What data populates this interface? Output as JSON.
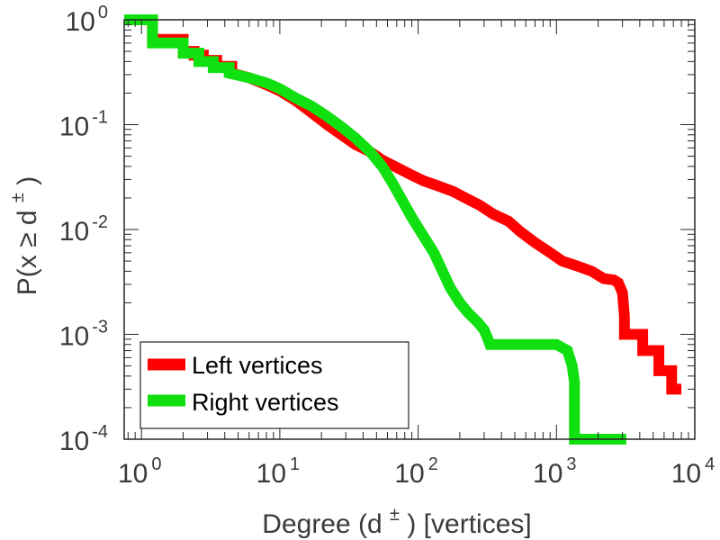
{
  "chart_data": {
    "type": "line",
    "xscale": "log",
    "yscale": "log",
    "xlim": [
      0.75,
      10000
    ],
    "ylim": [
      0.0001,
      1
    ],
    "xlabel": {
      "prefix": "Degree (d",
      "sup": "±",
      "suffix": ") [vertices]"
    },
    "ylabel": {
      "prefix": "P(x ≥ d",
      "sup": "±",
      "suffix": ")"
    },
    "xticks": [
      {
        "value": 1,
        "base": "10",
        "exp": "0"
      },
      {
        "value": 10,
        "base": "10",
        "exp": "1"
      },
      {
        "value": 100,
        "base": "10",
        "exp": "2"
      },
      {
        "value": 1000,
        "base": "10",
        "exp": "3"
      },
      {
        "value": 10000,
        "base": "10",
        "exp": "4"
      }
    ],
    "yticks": [
      {
        "value": 1,
        "base": "10",
        "exp": "0"
      },
      {
        "value": 0.1,
        "base": "10",
        "exp": "-1"
      },
      {
        "value": 0.01,
        "base": "10",
        "exp": "-2"
      },
      {
        "value": 0.001,
        "base": "10",
        "exp": "-3"
      },
      {
        "value": 0.0001,
        "base": "10",
        "exp": "-4"
      }
    ],
    "grid": false,
    "legend_position": "bottom-left",
    "series": [
      {
        "name": "Left vertices",
        "color": "#ff0000",
        "x": [
          0.75,
          1.2,
          1.2,
          2,
          2,
          2.4,
          2.4,
          2.8,
          2.8,
          3.5,
          3.5,
          4.5,
          4.5,
          6,
          8,
          10,
          13,
          17,
          22,
          28,
          35,
          45,
          55,
          70,
          90,
          110,
          140,
          180,
          220,
          280,
          350,
          450,
          550,
          700,
          900,
          1100,
          1400,
          1800,
          2200,
          2600,
          2800,
          3000,
          3100,
          3100,
          4200,
          4200,
          5500,
          5500,
          6800,
          6800,
          8000
        ],
        "y": [
          1,
          1,
          0.65,
          0.65,
          0.5,
          0.5,
          0.46,
          0.46,
          0.41,
          0.41,
          0.36,
          0.36,
          0.31,
          0.28,
          0.24,
          0.21,
          0.17,
          0.13,
          0.1,
          0.08,
          0.065,
          0.055,
          0.046,
          0.039,
          0.033,
          0.029,
          0.026,
          0.023,
          0.02,
          0.017,
          0.014,
          0.012,
          0.0095,
          0.0075,
          0.006,
          0.005,
          0.0045,
          0.004,
          0.0034,
          0.0033,
          0.0031,
          0.0025,
          0.0015,
          0.001,
          0.001,
          0.0007,
          0.0007,
          0.00045,
          0.00045,
          0.0003,
          0.0003
        ]
      },
      {
        "name": "Right vertices",
        "color": "#10e010",
        "x": [
          0.75,
          1.2,
          1.2,
          2,
          2,
          2.6,
          2.6,
          3.3,
          3.3,
          4.3,
          4.3,
          6,
          8,
          10,
          13,
          17,
          22,
          28,
          35,
          45,
          55,
          65,
          75,
          90,
          110,
          130,
          150,
          170,
          200,
          230,
          270,
          300,
          320,
          330,
          600,
          1000,
          1200,
          1300,
          1350,
          1350,
          3200
        ],
        "y": [
          1,
          1,
          0.6,
          0.6,
          0.48,
          0.48,
          0.4,
          0.4,
          0.35,
          0.35,
          0.31,
          0.28,
          0.25,
          0.22,
          0.18,
          0.15,
          0.12,
          0.095,
          0.075,
          0.055,
          0.04,
          0.028,
          0.02,
          0.013,
          0.0085,
          0.006,
          0.004,
          0.0028,
          0.002,
          0.0016,
          0.0013,
          0.0011,
          0.0009,
          0.0008,
          0.0008,
          0.0008,
          0.0007,
          0.0005,
          0.00035,
          0.0001,
          0.0001
        ]
      }
    ]
  }
}
